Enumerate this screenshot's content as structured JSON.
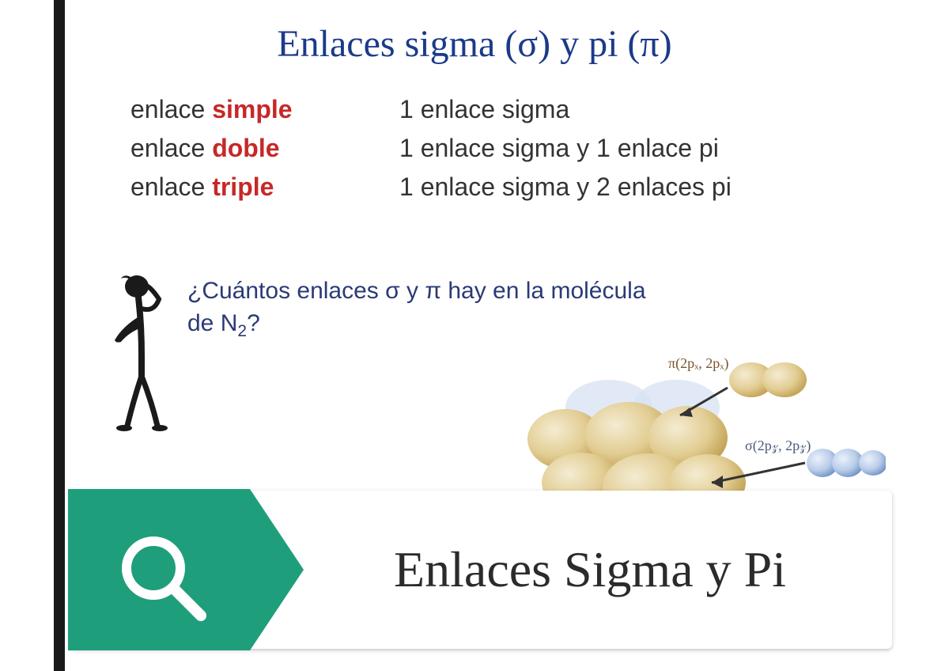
{
  "colors": {
    "title_color": "#1b3a8a",
    "emphasis_color": "#c62828",
    "body_text_color": "#333333",
    "question_color": "#2b3a75",
    "left_border_color": "#1a1a1a",
    "badge_color": "#1f9e7c",
    "magnifier_color": "#ffffff",
    "banner_title_color": "#2b2b2b",
    "background_color": "#ffffff",
    "orbital_gold_light": "#e8d6a3",
    "orbital_gold_dark": "#c9a95e",
    "orbital_blue_light": "#b9cce8",
    "orbital_blue_dark": "#6f94c9",
    "orbital_label_color": "#7a542c",
    "orbital_label2_color": "#4a5a7a",
    "thinker_color": "#1a1a1a",
    "shadow_color": "rgba(0,0,0,0.18)"
  },
  "typography": {
    "title_font": "Times New Roman",
    "title_size_pt": 36,
    "body_font": "Arial",
    "body_size_pt": 24,
    "question_size_pt": 22,
    "banner_title_size_pt": 48
  },
  "header": {
    "title_html": "Enlaces sigma (σ) y  pi (π)"
  },
  "bond_table": {
    "rows": [
      {
        "left_pre": "enlace ",
        "left_emph": "simple",
        "right": "1 enlace sigma"
      },
      {
        "left_pre": "enlace ",
        "left_emph": "doble",
        "right": "1 enlace sigma y 1 enlace pi"
      },
      {
        "left_pre": "enlace ",
        "left_emph": "triple",
        "right": "1 enlace sigma y 2 enlaces pi"
      }
    ]
  },
  "question": {
    "text_html": "¿Cuántos enlaces σ y π hay en la molécula de N<sub>2</sub>?"
  },
  "orbital": {
    "label_pi": "π(2pₓ, 2pₓ)",
    "label_sigma": "σ(2p𝓏, 2p𝓏)"
  },
  "banner": {
    "title": "Enlaces Sigma y Pi"
  }
}
